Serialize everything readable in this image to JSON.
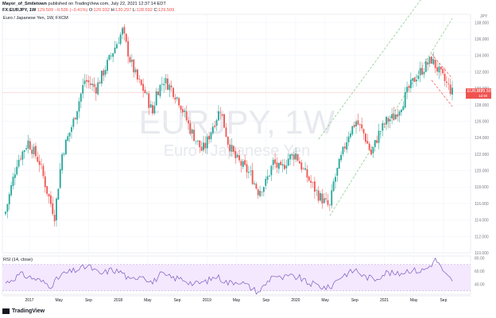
{
  "header": {
    "author": "Mayor_of_Smiletown",
    "published": "published on TradingView.com, July 22, 2021 12:37:14 EDT",
    "symbol": "FX:EURJPY, 1W",
    "last": "129.509",
    "change": "−0.536 (−0.41%)",
    "o_label": "O:",
    "o": "129.932",
    "h_label": "H:",
    "h": "130.297",
    "l_label": "L:",
    "l": "128.592",
    "c_label": "C:",
    "c": "129.509"
  },
  "main_legend": "Euro / Japanese Yen, 1W, FXCM",
  "watermark": {
    "symbol": "EURJPY, 1W",
    "name": "Euro / Japanese Yen"
  },
  "currency": "JPY",
  "price_tag": {
    "symbol": "EURJPY",
    "price": "129.509",
    "countdown": "1d 5h"
  },
  "rsi_legend": "RSI (14, close)",
  "footer": {
    "brand": "TradingView"
  },
  "colors": {
    "up": "#26a69a",
    "down": "#ef5350",
    "rsi_line": "#7e57c2",
    "rsi_band": "#f3e8fd",
    "channel": "#81c784"
  },
  "chart_data": [
    {
      "type": "candlestick",
      "title": "Euro / Japanese Yen, 1W, FXCM",
      "x_ticks": [
        "2017",
        "May",
        "Sep",
        "2018",
        "May",
        "Sep",
        "2019",
        "May",
        "Sep",
        "2020",
        "May",
        "Sep",
        "2021",
        "May",
        "Sep"
      ],
      "y_ticks": [
        110,
        112,
        114,
        116,
        118,
        120,
        122,
        124,
        126,
        128,
        130,
        132,
        134,
        136,
        138
      ],
      "ylim": [
        110,
        139
      ],
      "grid": true,
      "annotations": [
        "rising channel 2020–2021",
        "descending channel 2021"
      ],
      "series": [
        {
          "weeks": 238,
          "approx_close_path": [
            [
              0,
              115.0
            ],
            [
              6,
              121.0
            ],
            [
              12,
              123.5
            ],
            [
              18,
              121.0
            ],
            [
              22,
              117.5
            ],
            [
              26,
              114.5
            ],
            [
              30,
              122.0
            ],
            [
              36,
              126.0
            ],
            [
              42,
              131.0
            ],
            [
              48,
              130.0
            ],
            [
              54,
              133.0
            ],
            [
              58,
              135.0
            ],
            [
              62,
              137.0
            ],
            [
              66,
              133.5
            ],
            [
              70,
              131.0
            ],
            [
              74,
              129.5
            ],
            [
              78,
              127.0
            ],
            [
              80,
              129.5
            ],
            [
              84,
              131.0
            ],
            [
              88,
              130.0
            ],
            [
              92,
              128.5
            ],
            [
              98,
              125.0
            ],
            [
              104,
              122.5
            ],
            [
              106,
              123.0
            ],
            [
              110,
              125.5
            ],
            [
              114,
              127.5
            ],
            [
              118,
              123.5
            ],
            [
              122,
              121.5
            ],
            [
              126,
              120.5
            ],
            [
              130,
              119.5
            ],
            [
              134,
              117.5
            ],
            [
              138,
              118.5
            ],
            [
              142,
              121.0
            ],
            [
              146,
              120.0
            ],
            [
              150,
              121.5
            ],
            [
              154,
              122.0
            ],
            [
              158,
              120.0
            ],
            [
              162,
              118.5
            ],
            [
              166,
              117.0
            ],
            [
              170,
              116.0
            ],
            [
              172,
              115.5
            ],
            [
              174,
              118.5
            ],
            [
              178,
              121.5
            ],
            [
              182,
              124.5
            ],
            [
              186,
              126.0
            ],
            [
              190,
              124.5
            ],
            [
              194,
              122.0
            ],
            [
              198,
              124.5
            ],
            [
              202,
              126.0
            ],
            [
              206,
              126.5
            ],
            [
              210,
              128.0
            ],
            [
              214,
              130.0
            ],
            [
              218,
              131.5
            ],
            [
              222,
              132.5
            ],
            [
              226,
              133.5
            ],
            [
              230,
              132.0
            ],
            [
              234,
              130.5
            ],
            [
              237,
              129.5
            ]
          ]
        }
      ]
    },
    {
      "type": "line",
      "title": "RSI (14, close)",
      "y_ticks": [
        40,
        60,
        80
      ],
      "ylim": [
        25,
        83
      ],
      "bands": [
        30,
        70
      ],
      "series": [
        {
          "name": "RSI",
          "approx_values": [
            [
              0,
              42
            ],
            [
              8,
              55
            ],
            [
              16,
              48
            ],
            [
              24,
              38
            ],
            [
              30,
              55
            ],
            [
              38,
              62
            ],
            [
              44,
              68
            ],
            [
              50,
              55
            ],
            [
              56,
              62
            ],
            [
              62,
              58
            ],
            [
              66,
              45
            ],
            [
              72,
              55
            ],
            [
              78,
              42
            ],
            [
              82,
              55
            ],
            [
              88,
              50
            ],
            [
              94,
              48
            ],
            [
              100,
              40
            ],
            [
              106,
              44
            ],
            [
              112,
              52
            ],
            [
              118,
              42
            ],
            [
              124,
              45
            ],
            [
              130,
              35
            ],
            [
              134,
              28
            ],
            [
              138,
              40
            ],
            [
              142,
              55
            ],
            [
              146,
              48
            ],
            [
              150,
              52
            ],
            [
              156,
              50
            ],
            [
              160,
              42
            ],
            [
              164,
              40
            ],
            [
              168,
              36
            ],
            [
              172,
              34
            ],
            [
              176,
              48
            ],
            [
              180,
              55
            ],
            [
              186,
              62
            ],
            [
              190,
              52
            ],
            [
              196,
              48
            ],
            [
              202,
              58
            ],
            [
              208,
              55
            ],
            [
              214,
              62
            ],
            [
              220,
              60
            ],
            [
              224,
              65
            ],
            [
              228,
              77
            ],
            [
              230,
              72
            ],
            [
              232,
              58
            ],
            [
              236,
              48
            ],
            [
              237,
              47
            ]
          ]
        }
      ]
    }
  ]
}
